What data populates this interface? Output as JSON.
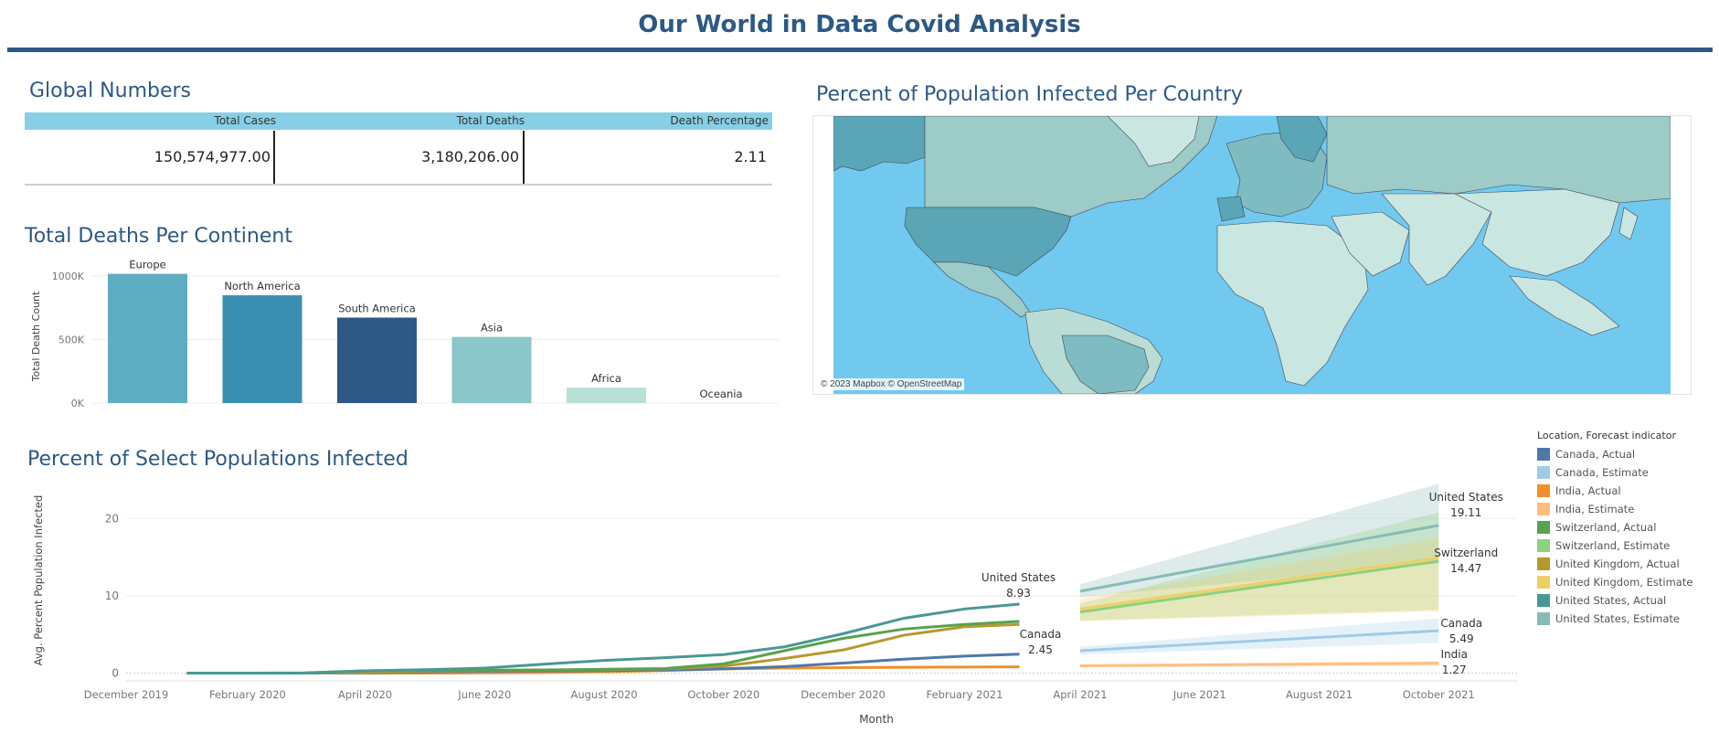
{
  "page": {
    "title": "Our World in Data Covid Analysis"
  },
  "global_numbers": {
    "title": "Global Numbers",
    "headers": [
      "Total Cases",
      "Total Deaths",
      "Death Percentage"
    ],
    "values": [
      "150,574,977.00",
      "3,180,206.00",
      "2.11"
    ]
  },
  "map": {
    "title": "Percent of Population Infected Per Country",
    "credit": "© 2023 Mapbox © OpenStreetMap"
  },
  "continent_chart": {
    "title": "Total Deaths Per Continent"
  },
  "infected_chart": {
    "title": "Percent of Select Populations Infected"
  },
  "legend": {
    "title": "Location, Forecast indicator",
    "items": [
      {
        "label": "Canada, Actual",
        "color": "#4e79a7"
      },
      {
        "label": "Canada, Estimate",
        "color": "#a0cbe8"
      },
      {
        "label": "India, Actual",
        "color": "#f28e2b"
      },
      {
        "label": "India, Estimate",
        "color": "#ffbe7d"
      },
      {
        "label": "Switzerland, Actual",
        "color": "#59a14f"
      },
      {
        "label": "Switzerland, Estimate",
        "color": "#8cd17d"
      },
      {
        "label": "United Kingdom, Actual",
        "color": "#b6992d"
      },
      {
        "label": "United Kingdom, Estimate",
        "color": "#f1ce63"
      },
      {
        "label": "United States, Actual",
        "color": "#499894"
      },
      {
        "label": "United States, Estimate",
        "color": "#86bcb6"
      }
    ]
  },
  "chart_data": [
    {
      "type": "bar",
      "title": "Total Deaths Per Continent",
      "ylabel": "Total Death Count",
      "xlabel": "",
      "categories": [
        "Europe",
        "North America",
        "South America",
        "Asia",
        "Africa",
        "Oceania"
      ],
      "values": [
        1016750,
        847942,
        672415,
        520269,
        121784,
        1046
      ],
      "colors": [
        "#5fadc2",
        "#3a8fb0",
        "#2c5985",
        "#8ac6ca",
        "#b9e0d6",
        "#b9e0d6"
      ],
      "yticks": [
        0,
        500000,
        1000000
      ],
      "ytick_labels": [
        "0K",
        "500K",
        "1000K"
      ],
      "ylim": [
        0,
        1050000
      ],
      "grid": true
    },
    {
      "type": "line",
      "title": "Percent of Select Populations Infected",
      "xlabel": "Month",
      "ylabel": "Avg. Percent Population Infected",
      "ylim": [
        -1,
        25
      ],
      "yticks": [
        0,
        10,
        20
      ],
      "x_ticks": [
        "December 2019",
        "February 2020",
        "April 2020",
        "June 2020",
        "August 2020",
        "October 2020",
        "December 2020",
        "February 2021",
        "April 2021",
        "June 2021",
        "August 2021",
        "October 2021"
      ],
      "xlim": [
        "2019-12-01",
        "2021-11-10"
      ],
      "grid": true,
      "legend_position": "right",
      "actual_series": [
        {
          "name": "United States, Actual",
          "color": "#499894",
          "x": [
            "2020-01-01",
            "2020-02-01",
            "2020-03-01",
            "2020-04-01",
            "2020-05-01",
            "2020-06-01",
            "2020-07-01",
            "2020-08-01",
            "2020-09-01",
            "2020-10-01",
            "2020-11-01",
            "2020-12-01",
            "2021-01-01",
            "2021-02-01",
            "2021-03-01"
          ],
          "y": [
            0,
            0,
            0.02,
            0.3,
            0.45,
            0.65,
            1.15,
            1.65,
            2.0,
            2.4,
            3.4,
            5.1,
            7.1,
            8.3,
            8.93
          ]
        },
        {
          "name": "Switzerland, Actual",
          "color": "#59a14f",
          "x": [
            "2020-01-01",
            "2020-02-01",
            "2020-03-01",
            "2020-04-01",
            "2020-05-01",
            "2020-06-01",
            "2020-07-01",
            "2020-08-01",
            "2020-09-01",
            "2020-10-01",
            "2020-11-01",
            "2020-12-01",
            "2021-01-01",
            "2021-02-01",
            "2021-03-01"
          ],
          "y": [
            0,
            0,
            0.03,
            0.3,
            0.35,
            0.38,
            0.42,
            0.5,
            0.6,
            1.2,
            2.9,
            4.5,
            5.7,
            6.3,
            6.7
          ]
        },
        {
          "name": "United Kingdom, Actual",
          "color": "#b6992d",
          "x": [
            "2020-01-01",
            "2020-02-01",
            "2020-03-01",
            "2020-04-01",
            "2020-05-01",
            "2020-06-01",
            "2020-07-01",
            "2020-08-01",
            "2020-09-01",
            "2020-10-01",
            "2020-11-01",
            "2020-12-01",
            "2021-01-01",
            "2021-02-01",
            "2021-03-01"
          ],
          "y": [
            0,
            0,
            0.01,
            0.1,
            0.25,
            0.35,
            0.4,
            0.45,
            0.55,
            0.9,
            1.9,
            3.0,
            4.9,
            6.0,
            6.3
          ]
        },
        {
          "name": "Canada, Actual",
          "color": "#4e79a7",
          "x": [
            "2020-01-01",
            "2020-02-01",
            "2020-03-01",
            "2020-04-01",
            "2020-05-01",
            "2020-06-01",
            "2020-07-01",
            "2020-08-01",
            "2020-09-01",
            "2020-10-01",
            "2020-11-01",
            "2020-12-01",
            "2021-01-01",
            "2021-02-01",
            "2021-03-01"
          ],
          "y": [
            0,
            0,
            0.01,
            0.05,
            0.15,
            0.25,
            0.3,
            0.33,
            0.4,
            0.55,
            0.85,
            1.3,
            1.8,
            2.2,
            2.45
          ]
        },
        {
          "name": "India, Actual",
          "color": "#f28e2b",
          "x": [
            "2020-01-01",
            "2020-02-01",
            "2020-03-01",
            "2020-04-01",
            "2020-05-01",
            "2020-06-01",
            "2020-07-01",
            "2020-08-01",
            "2020-09-01",
            "2020-10-01",
            "2020-11-01",
            "2020-12-01",
            "2021-01-01",
            "2021-02-01",
            "2021-03-01"
          ],
          "y": [
            0,
            0,
            0,
            0,
            0.01,
            0.03,
            0.08,
            0.18,
            0.35,
            0.55,
            0.65,
            0.72,
            0.76,
            0.79,
            0.81
          ]
        }
      ],
      "forecast_series": [
        {
          "name": "United States, Estimate",
          "color": "#86bcb6",
          "band_color": "#86bcb6",
          "x": [
            "2021-04-01",
            "2021-10-01"
          ],
          "y": [
            10.6,
            19.11
          ],
          "lower": [
            9.8,
            14.2
          ],
          "upper": [
            11.5,
            24.5
          ]
        },
        {
          "name": "Switzerland, Estimate",
          "color": "#8cd17d",
          "band_color": "#8cd17d",
          "x": [
            "2021-04-01",
            "2021-10-01"
          ],
          "y": [
            7.9,
            14.47
          ],
          "lower": [
            6.8,
            8.2
          ],
          "upper": [
            9.0,
            20.8
          ]
        },
        {
          "name": "United Kingdom, Estimate",
          "color": "#f1ce63",
          "band_color": "#f1ce63",
          "x": [
            "2021-04-01",
            "2021-10-01"
          ],
          "y": [
            8.3,
            14.9
          ],
          "lower": [
            6.7,
            8.0
          ],
          "upper": [
            9.6,
            17.5
          ]
        },
        {
          "name": "Canada, Estimate",
          "color": "#a0cbe8",
          "band_color": "#a0cbe8",
          "x": [
            "2021-04-01",
            "2021-10-01"
          ],
          "y": [
            2.9,
            5.49
          ],
          "lower": [
            2.4,
            3.9
          ],
          "upper": [
            3.4,
            7.1
          ]
        },
        {
          "name": "India, Estimate",
          "color": "#ffbe7d",
          "band_color": "#ffbe7d",
          "x": [
            "2021-04-01",
            "2021-10-01"
          ],
          "y": [
            0.95,
            1.27
          ],
          "lower": [
            0.75,
            0.95
          ],
          "upper": [
            1.15,
            1.6
          ]
        }
      ],
      "annotations": [
        {
          "name": "United States",
          "value": "8.93",
          "x": "2021-03-01",
          "y": 8.93,
          "side": "above"
        },
        {
          "name": "Canada",
          "value": "2.45",
          "x": "2021-03-01",
          "y": 2.45,
          "side": "above"
        },
        {
          "name": "United States",
          "value": "19.11",
          "x": "2021-10-01",
          "y": 19.11,
          "side": "above"
        },
        {
          "name": "Switzerland",
          "value": "14.47",
          "x": "2021-10-01",
          "y": 14.47,
          "side": "right"
        },
        {
          "name": "Canada",
          "value": "5.49",
          "x": "2021-10-01",
          "y": 5.49,
          "side": "right"
        },
        {
          "name": "India",
          "value": "1.27",
          "x": "2021-10-01",
          "y": 1.27,
          "side": "right"
        }
      ]
    }
  ]
}
